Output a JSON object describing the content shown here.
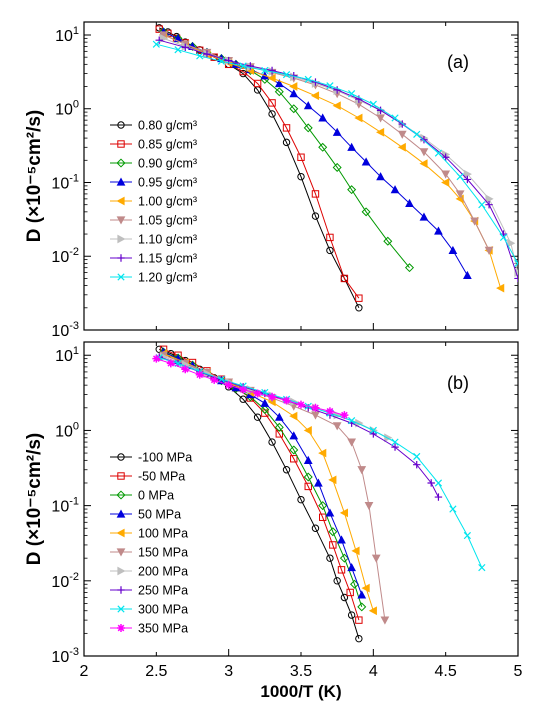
{
  "chart_data": [
    {
      "type": "line",
      "label": "(a)",
      "ylabel": "D (×10⁻⁵cm²/s)",
      "xlabel": "",
      "xlim": [
        2,
        5
      ],
      "ylim": [
        0.001,
        15
      ],
      "yscale": "log",
      "legend_position": "left",
      "series": [
        {
          "name": "0.80 g/cm³",
          "color": "#000000",
          "marker": "circle",
          "x": [
            2.52,
            2.58,
            2.64,
            2.7,
            2.8,
            2.9,
            3.0,
            3.1,
            3.2,
            3.3,
            3.4,
            3.5,
            3.6,
            3.7,
            3.8,
            3.9
          ],
          "y": [
            12.5,
            11,
            9.5,
            8,
            6.3,
            5,
            4.0,
            3.0,
            1.8,
            0.85,
            0.35,
            0.12,
            0.035,
            0.012,
            0.005,
            0.002
          ]
        },
        {
          "name": "0.85 g/cm³",
          "color": "#dd0000",
          "marker": "square",
          "x": [
            2.52,
            2.58,
            2.64,
            2.7,
            2.8,
            2.9,
            3.0,
            3.1,
            3.2,
            3.3,
            3.4,
            3.5,
            3.6,
            3.7,
            3.8,
            3.9
          ],
          "y": [
            12,
            10.5,
            9.0,
            7.8,
            6.2,
            5.0,
            4.0,
            3.2,
            2.2,
            1.2,
            0.55,
            0.22,
            0.07,
            0.018,
            0.005,
            0.0027
          ]
        },
        {
          "name": "0.90 g/cm³",
          "color": "#009900",
          "marker": "diamond",
          "x": [
            2.55,
            2.65,
            2.75,
            2.85,
            2.95,
            3.05,
            3.15,
            3.25,
            3.35,
            3.45,
            3.55,
            3.65,
            3.75,
            3.85,
            3.95,
            4.1,
            4.25
          ],
          "y": [
            11,
            9,
            7,
            5.8,
            4.8,
            4.0,
            3.3,
            2.5,
            1.7,
            1.0,
            0.55,
            0.3,
            0.16,
            0.08,
            0.04,
            0.016,
            0.007
          ]
        },
        {
          "name": "0.95 g/cm³",
          "color": "#0000dd",
          "marker": "tri-up",
          "x": [
            2.55,
            2.65,
            2.75,
            2.85,
            2.95,
            3.05,
            3.15,
            3.25,
            3.35,
            3.45,
            3.55,
            3.65,
            3.75,
            3.85,
            3.95,
            4.05,
            4.15,
            4.25,
            4.35,
            4.45,
            4.55,
            4.65
          ],
          "y": [
            11,
            9,
            7,
            5.8,
            4.8,
            4.0,
            3.4,
            2.8,
            2.2,
            1.6,
            1.1,
            0.75,
            0.48,
            0.3,
            0.19,
            0.12,
            0.08,
            0.052,
            0.034,
            0.022,
            0.012,
            0.0055
          ]
        },
        {
          "name": "1.00 g/cm³",
          "color": "#ffaa00",
          "marker": "tri-left",
          "x": [
            2.55,
            2.7,
            2.85,
            3.0,
            3.15,
            3.3,
            3.45,
            3.6,
            3.75,
            3.9,
            4.05,
            4.2,
            4.35,
            4.5,
            4.6,
            4.7,
            4.8,
            4.88
          ],
          "y": [
            10,
            7.5,
            5.5,
            4.2,
            3.3,
            2.6,
            2.0,
            1.5,
            1.1,
            0.75,
            0.48,
            0.3,
            0.18,
            0.1,
            0.06,
            0.03,
            0.012,
            0.0037
          ]
        },
        {
          "name": "1.05 g/cm³",
          "color": "#c08a8a",
          "marker": "tri-down",
          "x": [
            2.55,
            2.7,
            2.85,
            3.0,
            3.15,
            3.3,
            3.45,
            3.6,
            3.75,
            3.9,
            4.05,
            4.2,
            4.35,
            4.5,
            4.6,
            4.7,
            4.8
          ],
          "y": [
            10,
            7.5,
            5.8,
            4.5,
            3.7,
            3.1,
            2.6,
            2.1,
            1.6,
            1.15,
            0.75,
            0.45,
            0.26,
            0.13,
            0.07,
            0.03,
            0.012
          ]
        },
        {
          "name": "1.10 g/cm³",
          "color": "#bfbfbf",
          "marker": "tri-right",
          "x": [
            2.55,
            2.7,
            2.85,
            3.0,
            3.15,
            3.3,
            3.45,
            3.6,
            3.75,
            3.9,
            4.05,
            4.2,
            4.35,
            4.5,
            4.65,
            4.8,
            4.95,
            5.0
          ],
          "y": [
            9,
            7,
            5.5,
            4.5,
            3.7,
            3.2,
            2.7,
            2.2,
            1.75,
            1.3,
            0.95,
            0.62,
            0.4,
            0.24,
            0.13,
            0.06,
            0.015,
            0.006
          ]
        },
        {
          "name": "1.15 g/cm³",
          "color": "#6600cc",
          "marker": "plus",
          "x": [
            2.52,
            2.7,
            2.85,
            3.0,
            3.15,
            3.3,
            3.45,
            3.6,
            3.75,
            3.9,
            4.05,
            4.2,
            4.35,
            4.5,
            4.65,
            4.8,
            4.9,
            5.0
          ],
          "y": [
            8.5,
            6.8,
            5.5,
            4.5,
            3.8,
            3.3,
            2.8,
            2.3,
            1.8,
            1.35,
            0.95,
            0.62,
            0.38,
            0.22,
            0.11,
            0.05,
            0.02,
            0.005
          ]
        },
        {
          "name": "1.20 g/cm³",
          "color": "#00e5ee",
          "marker": "x",
          "x": [
            2.5,
            2.65,
            2.8,
            2.95,
            3.1,
            3.25,
            3.4,
            3.55,
            3.7,
            3.85,
            4.0,
            4.15,
            4.3,
            4.45,
            4.6,
            4.75,
            4.9,
            5.0
          ],
          "y": [
            7.5,
            6.3,
            5.2,
            4.4,
            3.8,
            3.3,
            2.9,
            2.5,
            2.05,
            1.6,
            1.15,
            0.75,
            0.45,
            0.25,
            0.12,
            0.05,
            0.018,
            0.008
          ]
        }
      ]
    },
    {
      "type": "line",
      "label": "(b)",
      "ylabel": "D (×10⁻⁵cm²/s)",
      "xlabel": "1000/T (K)",
      "xlim": [
        2,
        5
      ],
      "ylim": [
        0.001,
        15
      ],
      "yscale": "log",
      "legend_position": "left",
      "series": [
        {
          "name": "-100 MPa",
          "color": "#000000",
          "marker": "circle",
          "x": [
            2.52,
            2.6,
            2.7,
            2.8,
            2.9,
            3.0,
            3.1,
            3.2,
            3.3,
            3.4,
            3.5,
            3.6,
            3.7,
            3.75,
            3.8,
            3.85,
            3.9
          ],
          "y": [
            12,
            10.5,
            8.5,
            6.5,
            5.0,
            3.8,
            2.6,
            1.5,
            0.7,
            0.3,
            0.12,
            0.05,
            0.02,
            0.01,
            0.006,
            0.0035,
            0.0017
          ]
        },
        {
          "name": "-50 MPa",
          "color": "#dd0000",
          "marker": "square",
          "x": [
            2.55,
            2.65,
            2.75,
            2.85,
            2.95,
            3.05,
            3.15,
            3.25,
            3.35,
            3.45,
            3.55,
            3.65,
            3.72,
            3.78,
            3.84,
            3.9
          ],
          "y": [
            12,
            10,
            8,
            6.2,
            4.8,
            3.7,
            2.7,
            1.7,
            0.9,
            0.42,
            0.18,
            0.07,
            0.03,
            0.014,
            0.007,
            0.003
          ]
        },
        {
          "name": "0 MPa",
          "color": "#009900",
          "marker": "diamond",
          "x": [
            2.55,
            2.65,
            2.75,
            2.85,
            2.95,
            3.05,
            3.15,
            3.25,
            3.35,
            3.45,
            3.55,
            3.65,
            3.72,
            3.8,
            3.87,
            3.92
          ],
          "y": [
            11,
            9.2,
            7.4,
            5.8,
            4.6,
            3.6,
            2.8,
            1.9,
            1.1,
            0.55,
            0.24,
            0.1,
            0.045,
            0.02,
            0.009,
            0.0045
          ]
        },
        {
          "name": "50 MPa",
          "color": "#0000dd",
          "marker": "tri-up",
          "x": [
            2.55,
            2.65,
            2.75,
            2.85,
            2.95,
            3.05,
            3.15,
            3.25,
            3.35,
            3.45,
            3.55,
            3.62,
            3.7,
            3.78,
            3.85,
            3.92
          ],
          "y": [
            11,
            9,
            7.3,
            5.8,
            4.6,
            3.7,
            3.0,
            2.3,
            1.5,
            0.85,
            0.4,
            0.2,
            0.08,
            0.035,
            0.015,
            0.0065
          ]
        },
        {
          "name": "100 MPa",
          "color": "#ffaa00",
          "marker": "tri-left",
          "x": [
            2.55,
            2.7,
            2.85,
            3.0,
            3.15,
            3.3,
            3.45,
            3.55,
            3.65,
            3.72,
            3.8,
            3.88,
            3.95,
            4.0
          ],
          "y": [
            10.5,
            8,
            5.9,
            4.3,
            3.2,
            2.4,
            1.55,
            1.0,
            0.5,
            0.22,
            0.08,
            0.025,
            0.008,
            0.004
          ]
        },
        {
          "name": "150 MPa",
          "color": "#c08a8a",
          "marker": "tri-down",
          "x": [
            2.55,
            2.7,
            2.85,
            3.0,
            3.15,
            3.3,
            3.45,
            3.6,
            3.75,
            3.85,
            3.92,
            3.97,
            4.02,
            4.08
          ],
          "y": [
            10,
            7.8,
            5.9,
            4.4,
            3.4,
            2.7,
            2.1,
            1.6,
            1.15,
            0.7,
            0.3,
            0.1,
            0.02,
            0.003
          ]
        },
        {
          "name": "200 MPa",
          "color": "#bfbfbf",
          "marker": "tri-right",
          "x": [
            2.55,
            2.7,
            2.85,
            3.0,
            3.15,
            3.3,
            3.45,
            3.6,
            3.75,
            3.9,
            4.0,
            4.1
          ],
          "y": [
            9.5,
            7.5,
            5.7,
            4.4,
            3.5,
            2.9,
            2.4,
            2.0,
            1.6,
            1.25,
            1.0,
            0.8
          ]
        },
        {
          "name": "250 MPa",
          "color": "#6600cc",
          "marker": "plus",
          "x": [
            2.52,
            2.65,
            2.8,
            2.95,
            3.1,
            3.25,
            3.4,
            3.55,
            3.7,
            3.85,
            4.0,
            4.15,
            4.3,
            4.4,
            4.45
          ],
          "y": [
            9.5,
            7.8,
            6.0,
            4.7,
            3.8,
            3.1,
            2.5,
            2.0,
            1.6,
            1.25,
            0.9,
            0.6,
            0.35,
            0.2,
            0.13
          ]
        },
        {
          "name": "300 MPa",
          "color": "#00e5ee",
          "marker": "x",
          "x": [
            2.52,
            2.65,
            2.8,
            2.95,
            3.1,
            3.25,
            3.4,
            3.55,
            3.7,
            3.85,
            4.0,
            4.15,
            4.3,
            4.45,
            4.55,
            4.65,
            4.75
          ],
          "y": [
            9.3,
            7.8,
            6.1,
            4.8,
            3.9,
            3.2,
            2.6,
            2.1,
            1.7,
            1.35,
            1.0,
            0.7,
            0.45,
            0.2,
            0.09,
            0.04,
            0.015
          ]
        },
        {
          "name": "350 MPa",
          "color": "#ff00ff",
          "marker": "star",
          "x": [
            2.5,
            2.6,
            2.7,
            2.8,
            2.9,
            3.0,
            3.1,
            3.2,
            3.3,
            3.4,
            3.5,
            3.6,
            3.7,
            3.8
          ],
          "y": [
            9,
            7.8,
            6.5,
            5.5,
            4.7,
            4.0,
            3.5,
            3.1,
            2.8,
            2.5,
            2.2,
            2.0,
            1.8,
            1.6
          ]
        }
      ]
    }
  ]
}
